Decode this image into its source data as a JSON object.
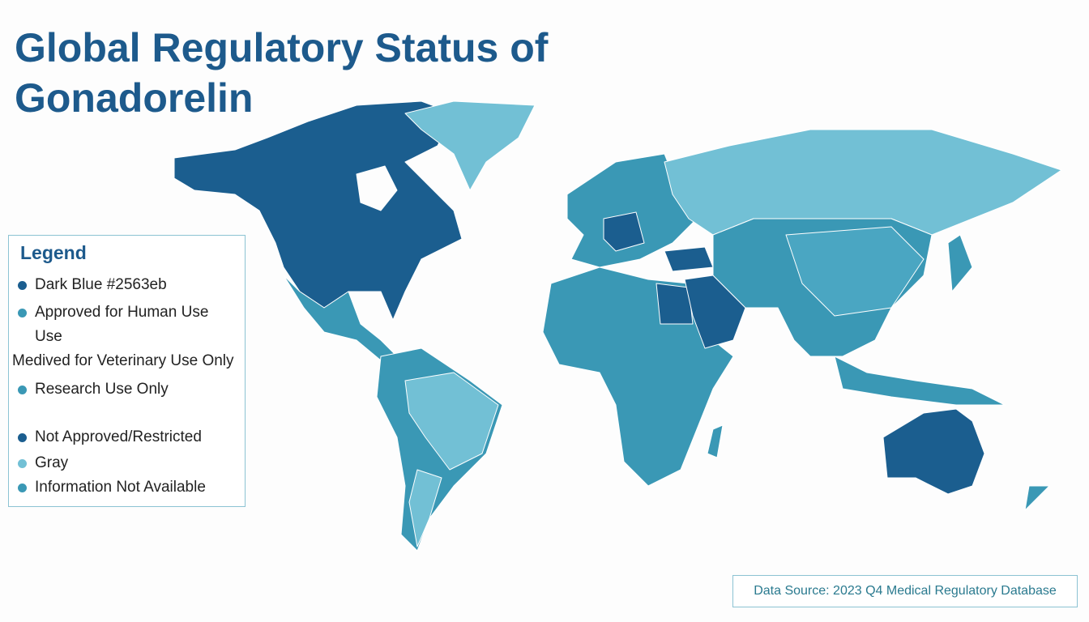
{
  "title": "Global Regulatory Status of Gonadorelin",
  "legend": {
    "title": "Legend",
    "items": [
      {
        "label": "Dark Blue #2563eb",
        "color": "#1b5e8f"
      },
      {
        "label": "Approved for Human Use",
        "continuation": "Use",
        "color": "#3a98b5"
      },
      {
        "label": "Medived for Veterinary Use Only"
      },
      {
        "label": "Research Use Only",
        "color": "#3a98b5"
      },
      {
        "label": "Not Approved/Restricted",
        "color": "#1b5e8f"
      },
      {
        "label": "Gray",
        "color": "#72c0d5"
      },
      {
        "label": "Information Not Available",
        "color": "#3a98b5"
      }
    ]
  },
  "source": "Data Source: 2023 Q4 Medical Regulatory Database"
}
